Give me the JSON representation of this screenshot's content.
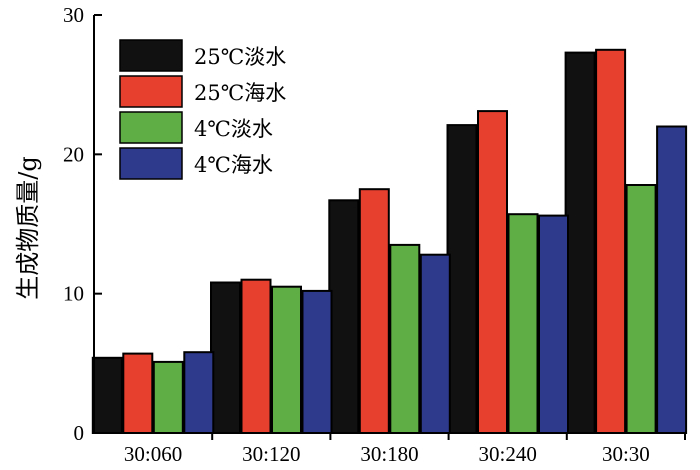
{
  "chart_data": {
    "type": "bar",
    "title": "",
    "xlabel": "",
    "ylabel": "生成物质量/g",
    "ylim": [
      0,
      30
    ],
    "yticks": [
      0,
      10,
      20,
      30
    ],
    "grid": false,
    "legend_position": "top-left",
    "categories": [
      "30:060",
      "30:120",
      "30:180",
      "30:240",
      "30:30"
    ],
    "series": [
      {
        "name": "25℃淡水",
        "color": "#111111",
        "values": [
          5.4,
          10.8,
          16.7,
          22.1,
          27.3
        ]
      },
      {
        "name": "25℃海水",
        "color": "#e8402f",
        "values": [
          5.7,
          11.0,
          17.5,
          23.1,
          27.5
        ]
      },
      {
        "name": "4℃淡水",
        "color": "#5fae45",
        "values": [
          5.1,
          10.5,
          13.5,
          15.7,
          17.8
        ]
      },
      {
        "name": "4℃海水",
        "color": "#2e3a8c",
        "values": [
          5.8,
          10.2,
          12.8,
          15.6,
          22.0
        ]
      }
    ]
  }
}
